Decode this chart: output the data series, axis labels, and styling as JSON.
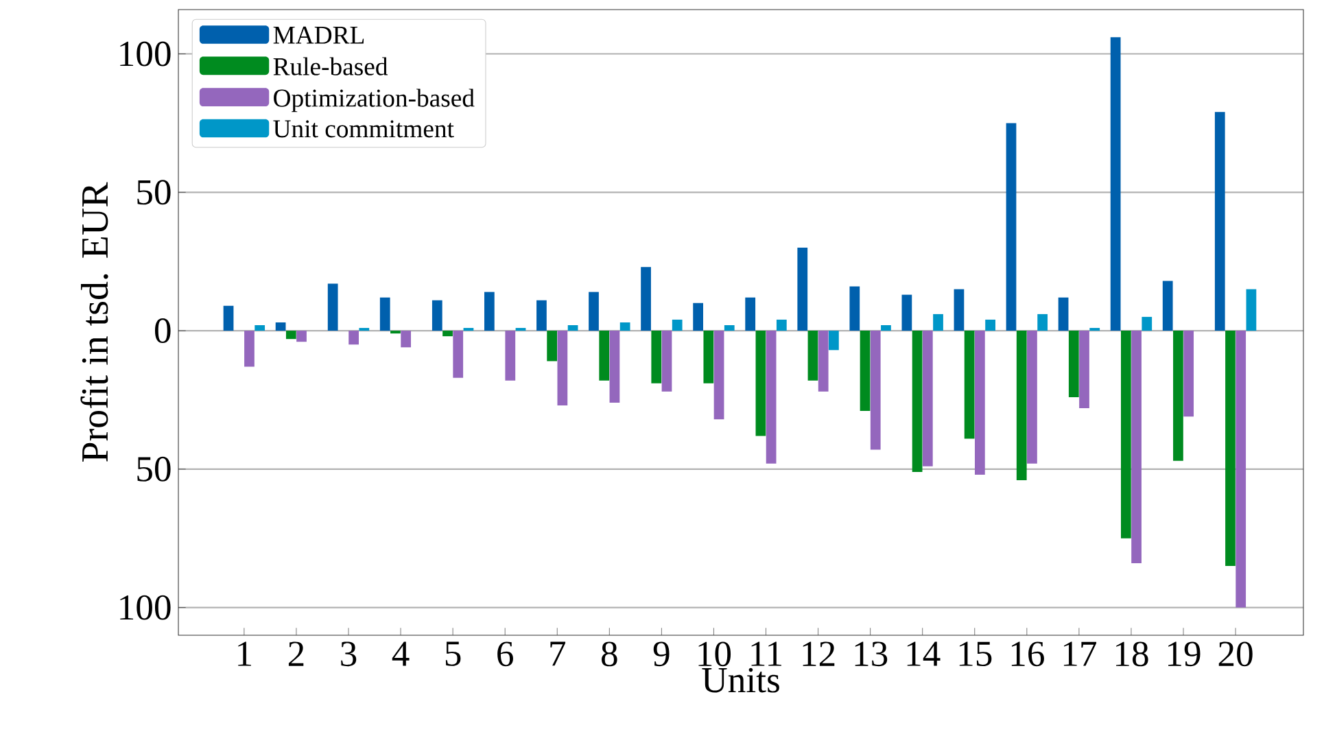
{
  "chart_data": {
    "type": "bar",
    "xlabel": "Units",
    "ylabel": "Profit in tsd. EUR",
    "categories": [
      "1",
      "2",
      "3",
      "4",
      "5",
      "6",
      "7",
      "8",
      "9",
      "10",
      "11",
      "12",
      "13",
      "14",
      "15",
      "16",
      "17",
      "18",
      "19",
      "20"
    ],
    "series": [
      {
        "name": "MADRL",
        "color": "#0060ad",
        "values": [
          9,
          3,
          17,
          12,
          11,
          14,
          11,
          14,
          23,
          10,
          12,
          30,
          16,
          13,
          15,
          75,
          12,
          106,
          18,
          79
        ]
      },
      {
        "name": "Rule-based",
        "color": "#008b1f",
        "values": [
          0,
          -3,
          0,
          -1,
          -2,
          0,
          -11,
          -18,
          -19,
          -19,
          -38,
          -18,
          -29,
          -51,
          -39,
          -54,
          -24,
          -75,
          -47,
          -85
        ]
      },
      {
        "name": "Optimization-based",
        "color": "#9467bd",
        "values": [
          -13,
          -4,
          -5,
          -6,
          -17,
          -18,
          -27,
          -26,
          -22,
          -32,
          -48,
          -22,
          -43,
          -49,
          -52,
          -48,
          -28,
          -84,
          -31,
          -100
        ]
      },
      {
        "name": "Unit commitment",
        "color": "#0097c8",
        "values": [
          2,
          0,
          1,
          0,
          1,
          1,
          2,
          3,
          4,
          2,
          4,
          -7,
          2,
          6,
          4,
          6,
          1,
          5,
          0,
          15
        ]
      }
    ],
    "ylim": [
      -110,
      116
    ],
    "yticks": [
      {
        "value": -100,
        "label": "100"
      },
      {
        "value": -50,
        "label": "50"
      },
      0,
      50,
      100
    ],
    "grid": "y",
    "legend": "top left"
  }
}
